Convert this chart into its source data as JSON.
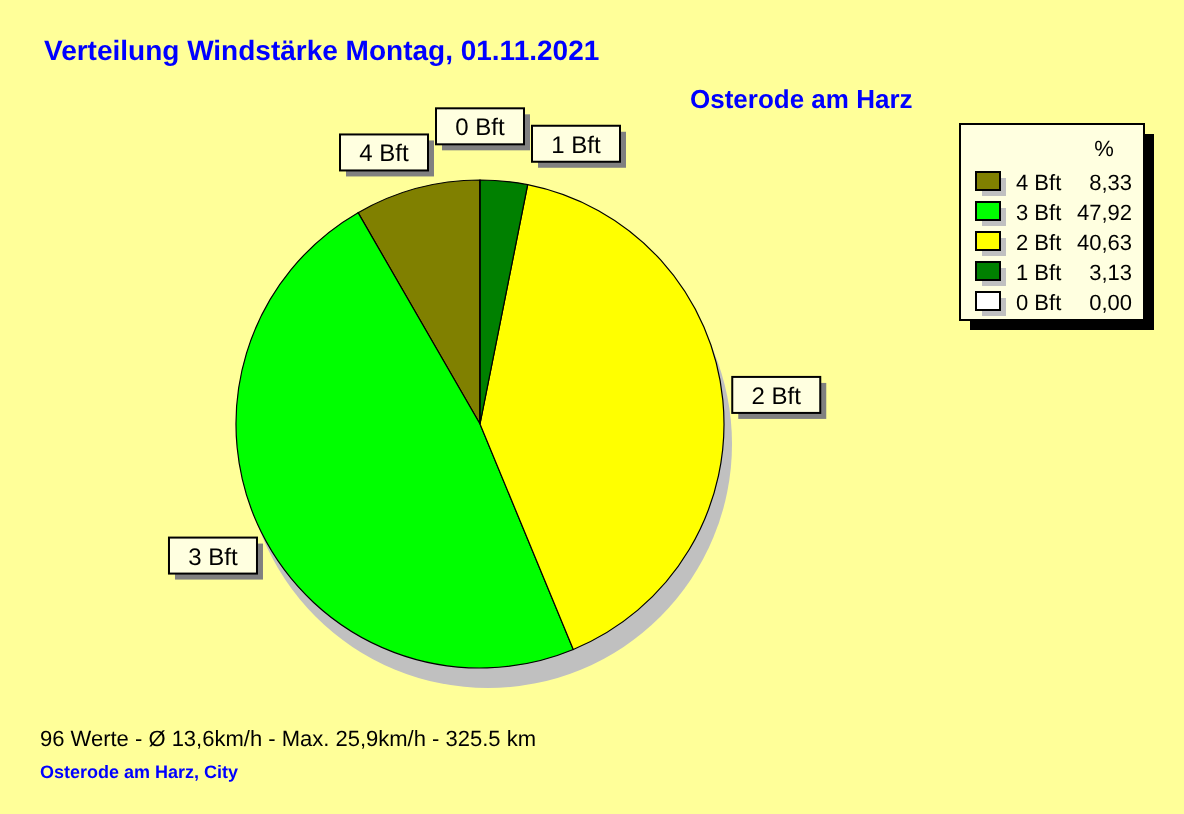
{
  "chart_data": {
    "type": "pie",
    "title": "Verteilung Windstärke  Montag, 01.11.2021",
    "subtitle": "Osterode am Harz",
    "legend_title": "%",
    "categories": [
      "4 Bft",
      "3 Bft",
      "2 Bft",
      "1 Bft",
      "0 Bft"
    ],
    "values": [
      8.33,
      47.92,
      40.63,
      3.13,
      0.0
    ],
    "value_labels": [
      "8,33",
      "47,92",
      "40,63",
      "3,13",
      "0,00"
    ],
    "colors": [
      "#808000",
      "#00ff00",
      "#ffff00",
      "#008000",
      "#ffffff"
    ],
    "legend": "top right",
    "annotations": [
      "96 Werte   -   Ø 13,6km/h  -  Max. 25,9km/h   -   325.5 km",
      "Osterode am Harz, City"
    ]
  }
}
